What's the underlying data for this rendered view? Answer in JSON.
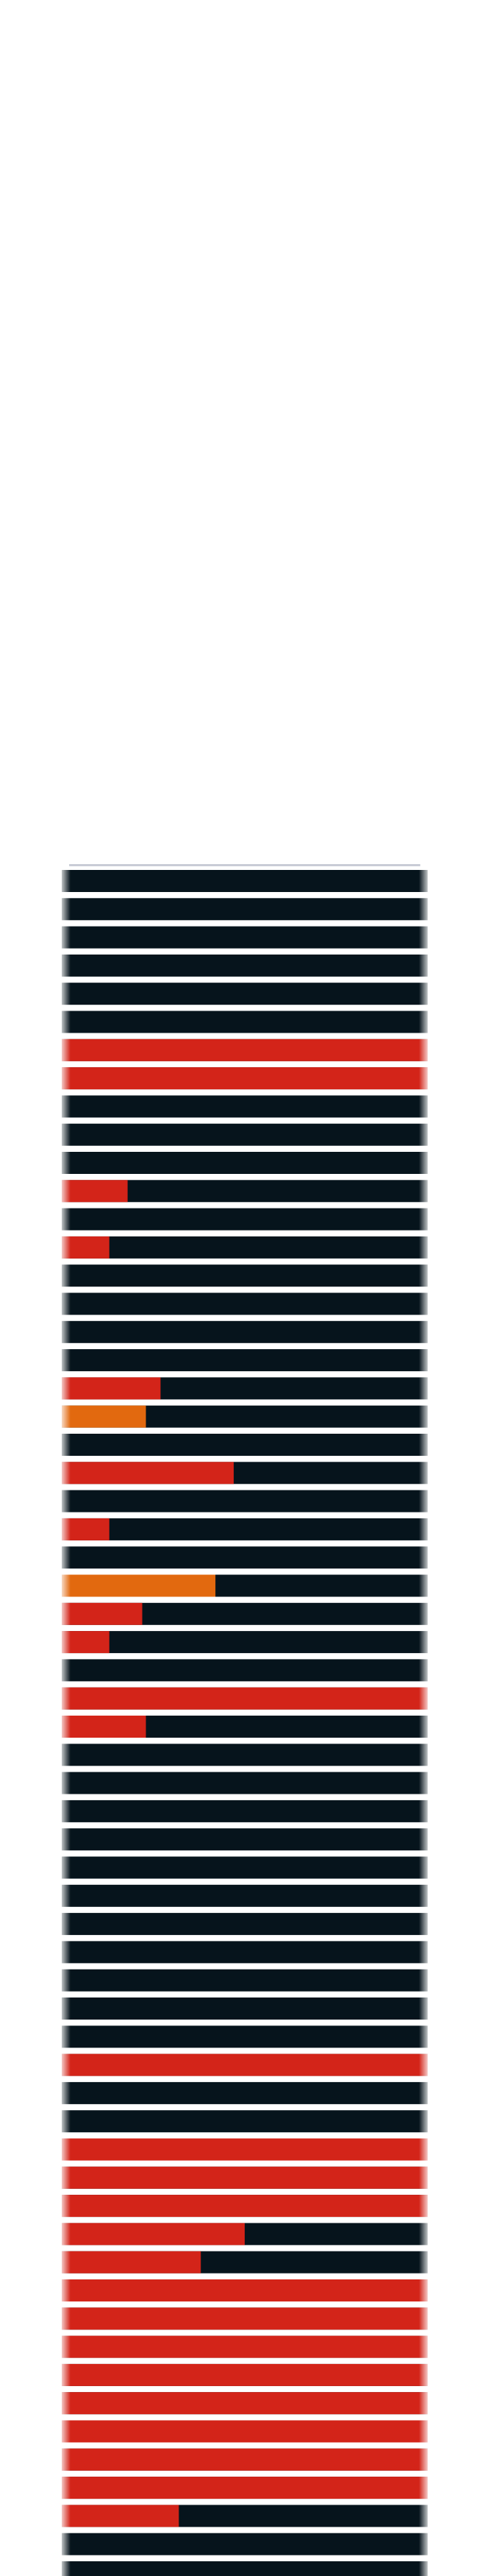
{
  "chart_data": {
    "type": "bar",
    "orientation": "horizontal",
    "stacked": true,
    "title": "",
    "xlabel": "",
    "ylabel": "",
    "xlim": [
      0,
      100
    ],
    "grid": false,
    "legend": "none",
    "colors": {
      "track": "#06141c",
      "red": "#d32419",
      "orange": "#e2690f",
      "separator": "#e8e8ee",
      "background": "#ffffff"
    },
    "rows": [
      {
        "value": 0,
        "color": "red"
      },
      {
        "value": 0,
        "color": "red"
      },
      {
        "value": 0,
        "color": "red"
      },
      {
        "value": 0,
        "color": "red"
      },
      {
        "value": 0,
        "color": "red"
      },
      {
        "value": 0,
        "color": "red"
      },
      {
        "value": 100,
        "color": "red"
      },
      {
        "value": 100,
        "color": "red"
      },
      {
        "value": 0,
        "color": "red"
      },
      {
        "value": 0,
        "color": "red"
      },
      {
        "value": 0,
        "color": "red"
      },
      {
        "value": 18,
        "color": "red"
      },
      {
        "value": 0,
        "color": "red"
      },
      {
        "value": 13,
        "color": "red"
      },
      {
        "value": 0,
        "color": "red"
      },
      {
        "value": 0,
        "color": "red"
      },
      {
        "value": 0,
        "color": "red"
      },
      {
        "value": 0,
        "color": "red"
      },
      {
        "value": 27,
        "color": "red"
      },
      {
        "value": 23,
        "color": "orange"
      },
      {
        "value": 0,
        "color": "red"
      },
      {
        "value": 47,
        "color": "red"
      },
      {
        "value": 0,
        "color": "red"
      },
      {
        "value": 13,
        "color": "red"
      },
      {
        "value": 0,
        "color": "red"
      },
      {
        "value": 42,
        "color": "orange"
      },
      {
        "value": 22,
        "color": "red"
      },
      {
        "value": 13,
        "color": "red"
      },
      {
        "value": 0,
        "color": "red"
      },
      {
        "value": 100,
        "color": "red"
      },
      {
        "value": 23,
        "color": "red"
      },
      {
        "value": 0,
        "color": "red"
      },
      {
        "value": 0,
        "color": "red"
      },
      {
        "value": 0,
        "color": "red"
      },
      {
        "value": 0,
        "color": "red"
      },
      {
        "value": 0,
        "color": "red"
      },
      {
        "value": 0,
        "color": "red"
      },
      {
        "value": 0,
        "color": "red"
      },
      {
        "value": 0,
        "color": "red"
      },
      {
        "value": 0,
        "color": "red"
      },
      {
        "value": 0,
        "color": "red"
      },
      {
        "value": 0,
        "color": "red"
      },
      {
        "value": 100,
        "color": "red"
      },
      {
        "value": 0,
        "color": "red"
      },
      {
        "value": 0,
        "color": "red"
      },
      {
        "value": 100,
        "color": "red"
      },
      {
        "value": 100,
        "color": "red"
      },
      {
        "value": 100,
        "color": "red"
      },
      {
        "value": 50,
        "color": "red"
      },
      {
        "value": 38,
        "color": "red"
      },
      {
        "value": 100,
        "color": "red"
      },
      {
        "value": 100,
        "color": "red"
      },
      {
        "value": 100,
        "color": "red"
      },
      {
        "value": 100,
        "color": "red"
      },
      {
        "value": 100,
        "color": "red"
      },
      {
        "value": 100,
        "color": "red"
      },
      {
        "value": 100,
        "color": "red"
      },
      {
        "value": 100,
        "color": "red"
      },
      {
        "value": 32,
        "color": "red"
      },
      {
        "value": 0,
        "color": "red"
      },
      {
        "value": 0,
        "color": "red"
      }
    ]
  }
}
